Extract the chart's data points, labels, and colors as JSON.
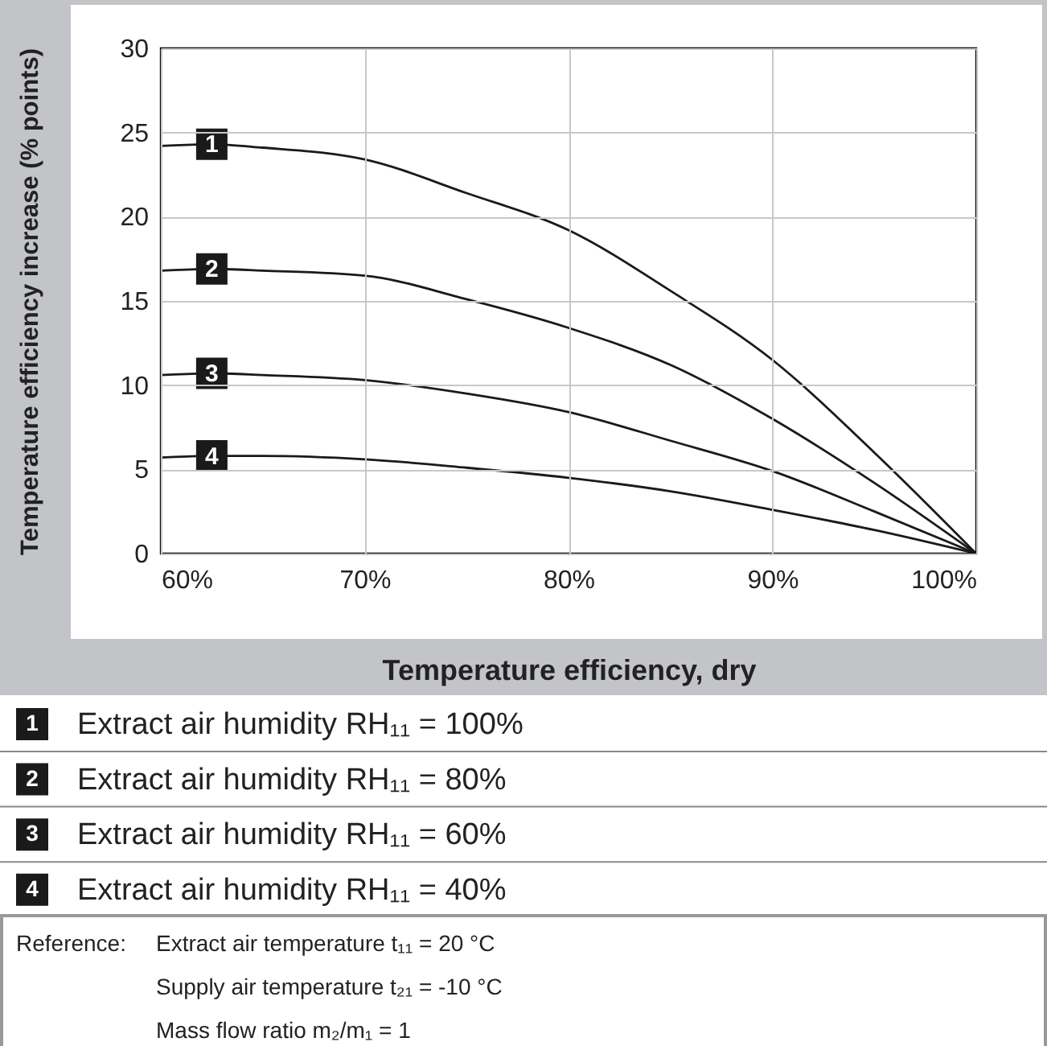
{
  "chart_data": {
    "type": "line",
    "xlabel": "Temperature efficiency, dry",
    "ylabel": "Temperature efficiency increase (% points)",
    "x": [
      60,
      62.5,
      65,
      70,
      75,
      80,
      85,
      90,
      95,
      100
    ],
    "series": [
      {
        "name": "1",
        "color": "#1a1a1a",
        "values": [
          24.2,
          24.3,
          24.1,
          23.4,
          21.4,
          19.2,
          15.6,
          11.5,
          6.0,
          0
        ]
      },
      {
        "name": "2",
        "color": "#1a1a1a",
        "values": [
          16.8,
          16.9,
          16.8,
          16.5,
          15.1,
          13.4,
          11.2,
          8.0,
          4.2,
          0
        ]
      },
      {
        "name": "3",
        "color": "#1a1a1a",
        "values": [
          10.6,
          10.7,
          10.6,
          10.3,
          9.5,
          8.4,
          6.7,
          4.9,
          2.5,
          0
        ]
      },
      {
        "name": "4",
        "color": "#1a1a1a",
        "values": [
          5.7,
          5.8,
          5.8,
          5.6,
          5.1,
          4.5,
          3.7,
          2.6,
          1.4,
          0
        ]
      }
    ],
    "xlim": [
      60,
      100
    ],
    "xticks": [
      {
        "value": 60,
        "label": "60%"
      },
      {
        "value": 70,
        "label": "70%"
      },
      {
        "value": 80,
        "label": "80%"
      },
      {
        "value": 90,
        "label": "90%"
      },
      {
        "value": 100,
        "label": "100%"
      }
    ],
    "ylim": [
      0,
      30
    ],
    "yticks": [
      0,
      5,
      10,
      15,
      20,
      25,
      30
    ],
    "grid": true,
    "legend": "bottom",
    "line_style": "solid",
    "annotations": [
      "Extract air humidity RH₁₁ = 100%",
      "Extract air humidity RH₁₁ =   80%",
      "Extract air humidity RH₁₁ =   60%",
      "Extract air humidity RH₁₁ =   40%",
      "Reference:",
      "Extract air temperature t₁₁ =   20 °C",
      "Supply air temperature t₂₁ = -10 °C",
      "Mass flow ratio m₂/m₁ = 1"
    ]
  }
}
